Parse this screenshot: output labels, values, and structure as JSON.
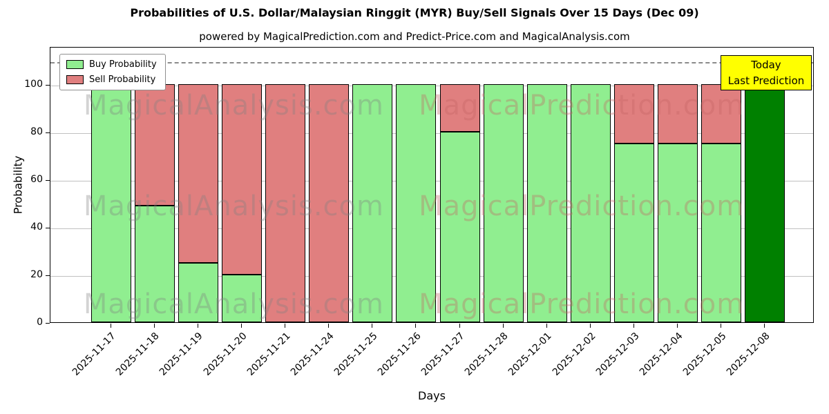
{
  "title": "Probabilities of U.S. Dollar/Malaysian Ringgit (MYR) Buy/Sell Signals Over 15 Days (Dec 09)",
  "subtitle": "powered by MagicalPrediction.com and Predict-Price.com and MagicalAnalysis.com",
  "axes": {
    "xlabel": "Days",
    "ylabel": "Probability"
  },
  "annotation": {
    "line1": "Today",
    "line2": "Last Prediction",
    "bg_color": "#ffff00"
  },
  "watermarks": {
    "left_text": "MagicalAnalysis.com",
    "right_text": "MagicalPrediction.com",
    "left_color": "rgba(128,128,128,0.35)",
    "right_color": "rgba(195,100,100,0.35)"
  },
  "chart_data": {
    "type": "bar",
    "stacked": true,
    "title": "Probabilities of U.S. Dollar/Malaysian Ringgit (MYR) Buy/Sell Signals Over 15 Days (Dec 09)",
    "xlabel": "Days",
    "ylabel": "Probability",
    "categories": [
      "2025-11-17",
      "2025-11-18",
      "2025-11-19",
      "2025-11-20",
      "2025-11-21",
      "2025-11-24",
      "2025-11-25",
      "2025-11-26",
      "2025-11-27",
      "2025-11-28",
      "2025-12-01",
      "2025-12-02",
      "2025-12-03",
      "2025-12-04",
      "2025-12-05",
      "2025-12-08"
    ],
    "series": [
      {
        "name": "Buy Probability",
        "color": "#90ee90",
        "values": [
          100,
          49,
          25,
          20,
          0,
          0,
          100,
          100,
          80,
          100,
          100,
          100,
          75,
          75,
          75,
          100
        ]
      },
      {
        "name": "Sell Probability",
        "color": "#e07f7f",
        "values": [
          0,
          51,
          75,
          80,
          100,
          100,
          0,
          0,
          20,
          0,
          0,
          0,
          25,
          25,
          25,
          0
        ]
      }
    ],
    "final_bar": {
      "index": 15,
      "color": "#008000",
      "note": "Today / Last Prediction"
    },
    "yticks": [
      0,
      20,
      40,
      60,
      80,
      100
    ],
    "ylim": [
      0,
      116
    ],
    "dashed_line_y": 110,
    "grid": "horizontal",
    "legend_position": "upper left"
  }
}
